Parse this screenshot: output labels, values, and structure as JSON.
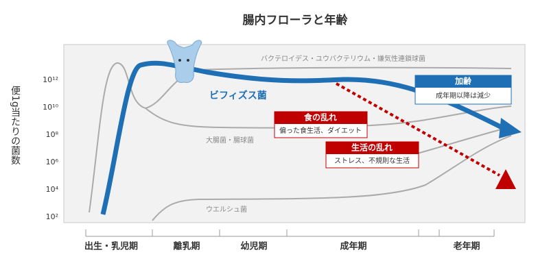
{
  "title": "腸内フローラと年齢",
  "y_axis": {
    "label": "便1g当たりの菌数",
    "ticks": [
      "10¹²",
      "10¹⁰",
      "10⁸",
      "10⁶",
      "10⁴",
      "10²"
    ]
  },
  "curves": [
    {
      "label": "バクテロイデス・ユウバクテリウム・嫌気性連鎖球菌"
    },
    {
      "label": "ビフィズス菌"
    },
    {
      "label": "大腸菌・腸球菌"
    },
    {
      "label": "ウエルシュ菌"
    }
  ],
  "callouts": [
    {
      "title": "加齢",
      "text": "成年期以降は減少"
    },
    {
      "title": "食の乱れ",
      "text": "偏った食生活、ダイエット"
    },
    {
      "title": "生活の乱れ",
      "text": "ストレス、不規則な生活"
    }
  ],
  "stages": [
    "出生・乳児期",
    "離乳期",
    "幼児期",
    "成年期",
    "老年期"
  ]
}
